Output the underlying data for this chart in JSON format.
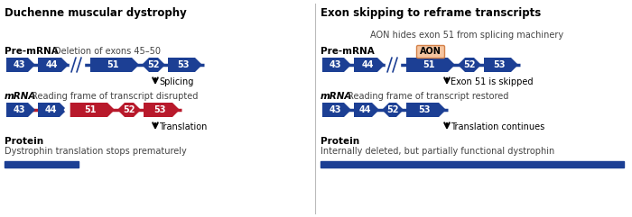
{
  "left_title": "Duchenne muscular dystrophy",
  "right_title": "Exon skipping to reframe transcripts",
  "blue": "#1c3f94",
  "red": "#b8192b",
  "salmon": "#f4a460",
  "white": "#ffffff",
  "bg": "#ffffff",
  "left_premrna_label": "Pre-mRNA",
  "left_premrna_note": "Deletion of exons 45–50",
  "left_mrna_label": "mRNA",
  "left_mrna_note": "Reading frame of transcript disrupted",
  "left_protein_label": "Protein",
  "left_protein_note": "Dystrophin translation stops prematurely",
  "left_splicing": "Splicing",
  "left_translation": "Translation",
  "right_premrna_label": "Pre-mRNA",
  "right_premrna_note": "AON hides exon 51 from splicing machinery",
  "right_mrna_label": "mRNA",
  "right_mrna_note": "Reading frame of transcript restored",
  "right_protein_label": "Protein",
  "right_protein_note": "Internally deleted, but partially functional dystrophin",
  "right_skip_note": "Exon 51 is skipped",
  "right_translation": "Translation continues",
  "aon_label": "AON"
}
